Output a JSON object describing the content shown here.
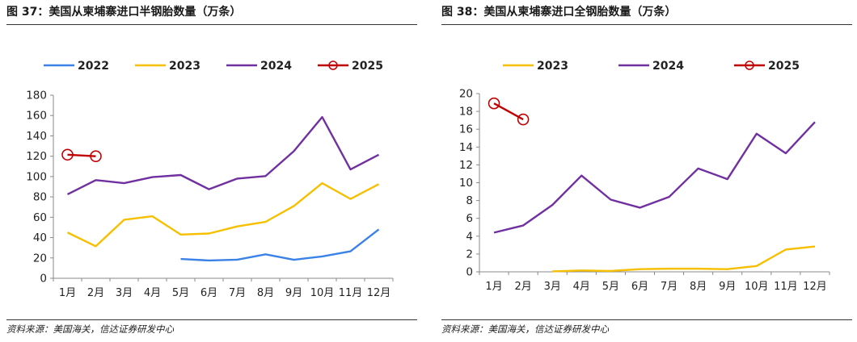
{
  "colors": {
    "2022": "#3b82e8",
    "2023": "#f6c000",
    "2024": "#7030a0",
    "2025": "#c00000",
    "axis": "#888888",
    "rule": "#333333"
  },
  "chart_data": [
    {
      "type": "line",
      "title": "图 37：美国从柬埔寨进口半钢胎数量（万条）",
      "source": "资料来源：美国海关，信达证券研发中心",
      "categories": [
        "1月",
        "2月",
        "3月",
        "4月",
        "5月",
        "6月",
        "7月",
        "8月",
        "9月",
        "10月",
        "11月",
        "12月"
      ],
      "ylim": [
        0,
        180
      ],
      "yticks": [
        0,
        20,
        40,
        60,
        80,
        100,
        120,
        140,
        160,
        180
      ],
      "legend_position": "top",
      "series": [
        {
          "name": "2022",
          "color_key": "2022",
          "marker": false,
          "values": [
            null,
            null,
            null,
            null,
            19,
            17.5,
            18.3,
            23.5,
            18.2,
            21.5,
            26.5,
            48
          ]
        },
        {
          "name": "2023",
          "color_key": "2023",
          "marker": false,
          "values": [
            45,
            31.5,
            57.5,
            61,
            43,
            44,
            51,
            55.5,
            71,
            93.5,
            78,
            92.5
          ]
        },
        {
          "name": "2024",
          "color_key": "2024",
          "marker": false,
          "values": [
            82.5,
            96.5,
            93.5,
            99.5,
            101.5,
            87.5,
            98,
            100.5,
            125,
            158.5,
            107,
            121.5
          ]
        },
        {
          "name": "2025",
          "color_key": "2025",
          "marker": true,
          "values": [
            121.5,
            120,
            null,
            null,
            null,
            null,
            null,
            null,
            null,
            null,
            null,
            null
          ]
        }
      ]
    },
    {
      "type": "line",
      "title": "图 38：美国从柬埔寨进口全钢胎数量（万条）",
      "source": "资料来源：美国海关，信达证券研发中心",
      "categories": [
        "1月",
        "2月",
        "3月",
        "4月",
        "5月",
        "6月",
        "7月",
        "8月",
        "9月",
        "10月",
        "11月",
        "12月"
      ],
      "ylim": [
        0,
        20
      ],
      "yticks": [
        0,
        2,
        4,
        6,
        8,
        10,
        12,
        14,
        16,
        18,
        20
      ],
      "legend_position": "top",
      "series": [
        {
          "name": "2023",
          "color_key": "2023",
          "marker": false,
          "values": [
            null,
            null,
            0.05,
            0.15,
            0.1,
            0.3,
            0.35,
            0.35,
            0.3,
            0.65,
            2.5,
            2.85
          ]
        },
        {
          "name": "2024",
          "color_key": "2024",
          "marker": false,
          "values": [
            4.4,
            5.2,
            7.5,
            10.8,
            8.1,
            7.2,
            8.4,
            11.6,
            10.4,
            15.5,
            13.3,
            16.8
          ]
        },
        {
          "name": "2025",
          "color_key": "2025",
          "marker": true,
          "values": [
            18.9,
            17.1,
            null,
            null,
            null,
            null,
            null,
            null,
            null,
            null,
            null,
            null
          ]
        }
      ]
    }
  ]
}
